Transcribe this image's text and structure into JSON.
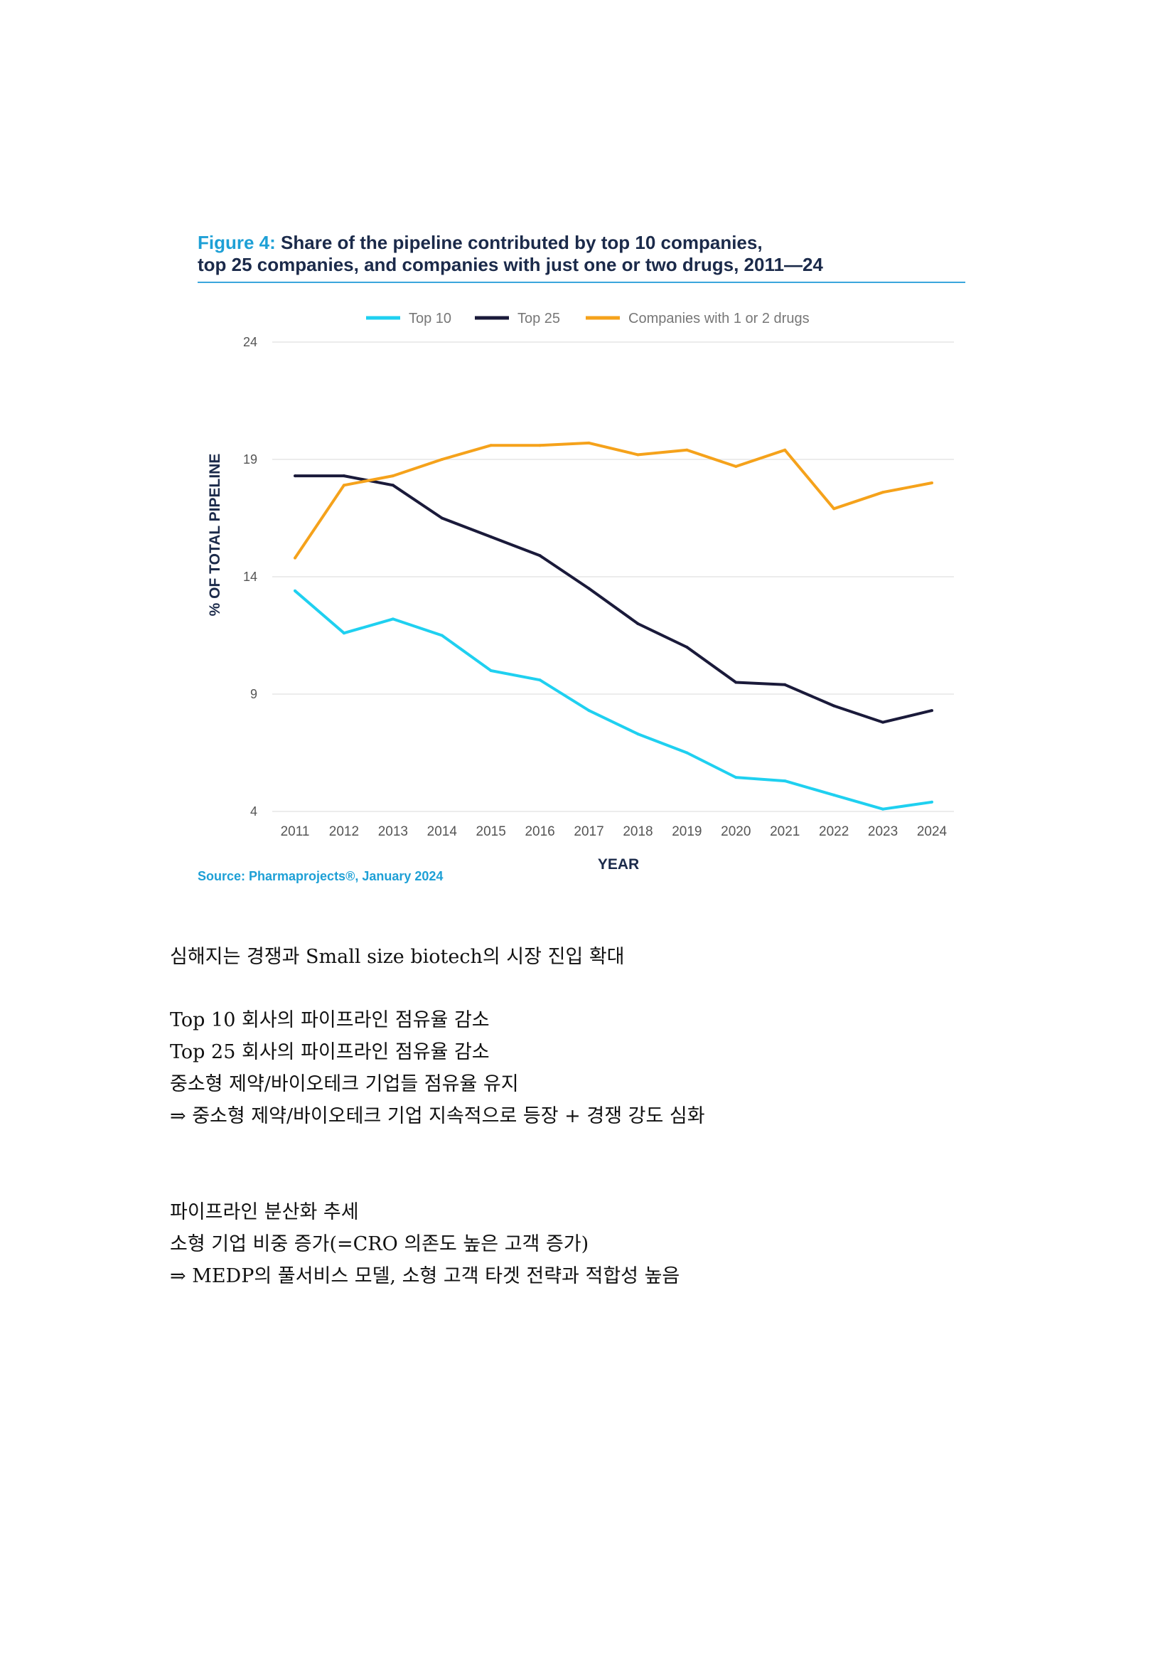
{
  "figure": {
    "title_lead": "Figure 4:",
    "title_rest": " Share of the pipeline contributed by top 10 companies,",
    "title_line2": "top 25 companies, and companies with just one or two drugs, 2011—24",
    "source": "Source: Pharmaprojects®, January 2024"
  },
  "chart_data": {
    "type": "line",
    "title": "Share of the pipeline contributed by top 10 companies, top 25 companies, and companies with just one or two drugs, 2011—24",
    "xlabel": "YEAR",
    "ylabel": "% OF TOTAL PIPELINE",
    "ylim": [
      4,
      24
    ],
    "yticks": [
      "24",
      "19",
      "14",
      "9",
      "4"
    ],
    "ytick_values": [
      24,
      19,
      14,
      9,
      4
    ],
    "grid": true,
    "legend_position": "top-center",
    "categories": [
      "2011",
      "2012",
      "2013",
      "2014",
      "2015",
      "2016",
      "2017",
      "2018",
      "2019",
      "2020",
      "2021",
      "2022",
      "2023",
      "2024"
    ],
    "series": [
      {
        "name": "Top 10",
        "color": "#1fd0f0",
        "values": [
          13.4,
          11.6,
          12.2,
          11.5,
          10.0,
          9.6,
          8.3,
          7.3,
          6.5,
          5.45,
          5.3,
          4.7,
          4.1,
          4.4
        ]
      },
      {
        "name": "Top 25",
        "color": "#1a1a3a",
        "values": [
          18.3,
          18.3,
          17.9,
          16.5,
          15.7,
          14.9,
          13.5,
          12.0,
          11.0,
          9.5,
          9.4,
          8.5,
          7.8,
          8.3
        ]
      },
      {
        "name": "Companies with 1 or 2 drugs",
        "color": "#f5a21b",
        "values": [
          14.8,
          17.9,
          18.3,
          19.0,
          19.6,
          19.6,
          19.7,
          19.2,
          19.4,
          18.7,
          19.4,
          16.9,
          17.6,
          18.0
        ]
      }
    ]
  },
  "notes": {
    "heading1": "심해지는 경쟁과 Small size biotech의 시장 진입 확대",
    "lines1": [
      "Top 10 회사의 파이프라인 점유율 감소",
      "Top 25 회사의 파이프라인 점유율 감소",
      "중소형 제약/바이오테크 기업들 점유율 유지",
      "⇒ 중소형 제약/바이오테크 기업 지속적으로 등장 + 경쟁 강도 심화"
    ],
    "heading2": "파이프라인 분산화 추세",
    "lines2": [
      "소형 기업 비중 증가(=CRO 의존도 높은 고객 증가)",
      "⇒ MEDP의 풀서비스 모델, 소형 고객 타겟 전략과 적합성 높음"
    ]
  }
}
